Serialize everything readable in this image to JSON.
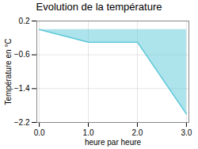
{
  "chart_data": {
    "type": "line",
    "title": "Evolution de la température",
    "xlabel": "heure par heure",
    "ylabel": "Température en °C",
    "x": [
      0,
      1,
      2,
      3
    ],
    "values": [
      0.0,
      -0.3,
      -0.3,
      -2.0
    ],
    "color": "#5bc8d8",
    "xlim": [
      -0.05,
      3.05
    ],
    "ylim": [
      -2.2,
      0.2
    ],
    "xticks": [
      0,
      1,
      2,
      3
    ],
    "yticks": [
      0.2,
      -0.6,
      -1.4,
      -2.2
    ],
    "grid": true
  }
}
